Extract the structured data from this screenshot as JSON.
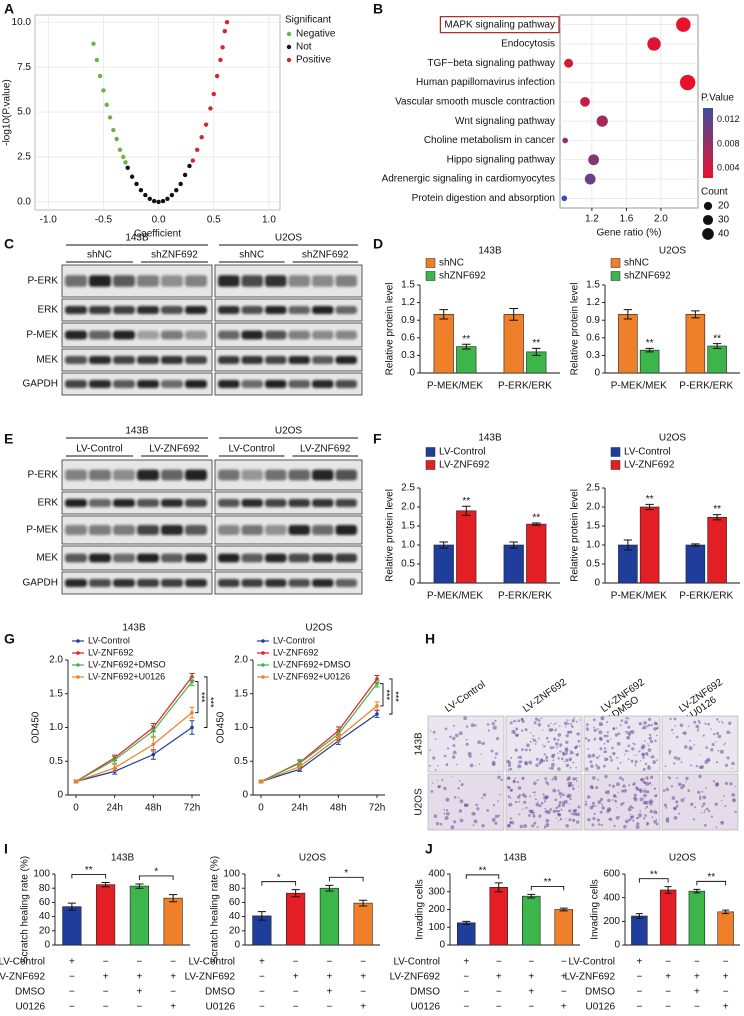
{
  "panel_letters": [
    "A",
    "B",
    "C",
    "D",
    "E",
    "F",
    "G",
    "H",
    "I",
    "J"
  ],
  "chart_data": [
    {
      "type": "scatter",
      "xlabel": "Coefficient",
      "ylabel": "-log10(P.value)",
      "legend_title": "Significant",
      "legend": "right",
      "grid": true,
      "xlim": [
        -1.12,
        1.1
      ],
      "xticks": [
        {
          "value": -1,
          "label": "-1.0"
        },
        -0.5,
        {
          "value": 0,
          "label": "0.0"
        },
        0.5,
        {
          "value": 1,
          "label": "1.0"
        }
      ],
      "ylim": [
        -0.45,
        10.4
      ],
      "yticks": [
        {
          "value": 0,
          "label": "0.0"
        },
        2.5,
        {
          "value": 5,
          "label": "5.0"
        },
        7.5,
        {
          "value": 10,
          "label": "10.0"
        }
      ],
      "series": [
        {
          "name": "Negative",
          "color": "#6ab344",
          "x": [
            -0.59,
            -0.56,
            -0.53,
            -0.5,
            -0.47,
            -0.44,
            -0.41,
            -0.38,
            -0.35,
            -0.32,
            -0.3
          ],
          "values": [
            8.8,
            7.9,
            7.0,
            6.2,
            5.4,
            4.7,
            4.0,
            3.5,
            2.9,
            2.5,
            2.2
          ]
        },
        {
          "name": "Not",
          "color": "#111111",
          "x": [
            -0.28,
            -0.24,
            -0.2,
            -0.16,
            -0.12,
            -0.08,
            -0.04,
            0,
            0.04,
            0.08,
            0.12,
            0.16,
            0.2,
            0.24,
            0.28
          ],
          "values": [
            1.9,
            1.4,
            1.0,
            0.65,
            0.38,
            0.17,
            0.05,
            0,
            0.05,
            0.17,
            0.38,
            0.65,
            1.0,
            1.5,
            2.0
          ]
        },
        {
          "name": "Positive",
          "color": "#d7262b",
          "x": [
            0.31,
            0.35,
            0.39,
            0.43,
            0.47,
            0.5,
            0.53,
            0.56,
            0.58,
            0.6,
            0.62
          ],
          "values": [
            2.3,
            2.9,
            3.6,
            4.3,
            5.2,
            6.0,
            7.0,
            7.9,
            8.6,
            9.5,
            10.0
          ]
        }
      ]
    },
    {
      "type": "bubble",
      "xlabel": "Gene ratio (%)",
      "grid": true,
      "highlight": 0,
      "categories": [
        "MAPK signaling pathway",
        "Endocytosis",
        "TGF−beta signaling pathway",
        "Human papillomavirus infection",
        "Vascular smooth muscle contraction",
        "Wnt signaling pathway",
        "Choline metabolism in cancer",
        "Hippo signaling pathway",
        "Adrenergic signaling in cardiomyocytes",
        "Protein digestion and absorption"
      ],
      "values": [
        2.26,
        1.92,
        0.93,
        2.31,
        1.12,
        1.32,
        0.89,
        1.22,
        1.18,
        0.88
      ],
      "sizes": [
        40,
        34,
        15,
        45,
        18,
        24,
        6,
        22,
        22,
        6
      ],
      "pvalues": [
        0.0025,
        0.003,
        0.0035,
        0.0024,
        0.0045,
        0.007,
        0.009,
        0.0095,
        0.011,
        0.0139
      ],
      "xlim": [
        0.83,
        2.43
      ],
      "xticks": [
        1.2,
        1.6,
        {
          "value": 2,
          "label": "2.0"
        }
      ],
      "color_title": "P.Value",
      "clim": [
        0.0024,
        0.0139
      ],
      "cticks": [
        0.012,
        0.008,
        0.004
      ],
      "low_color": "#e8112d",
      "high_color": "#3f4ea0",
      "size_title": "Count",
      "size_ticks": [
        20,
        30,
        40
      ]
    },
    {
      "type": "bar",
      "title": "143B",
      "ylabel": "Relative protein level",
      "categories": [
        "P-MEK/MEK",
        "P-ERK/ERK"
      ],
      "ylim": [
        0,
        1.5
      ],
      "yticks": [
        0,
        0.3,
        0.6,
        0.9,
        1.2,
        1.5
      ],
      "legend": "top-left",
      "series": [
        {
          "name": "shNC",
          "color": "#f07f2a",
          "values": [
            1.0,
            1.0
          ],
          "errors": [
            0.08,
            0.1
          ]
        },
        {
          "name": "shZNF692",
          "color": "#3cb54a",
          "values": [
            0.45,
            0.36
          ],
          "errors": [
            0.04,
            0.06
          ],
          "labels": [
            "**",
            "**"
          ]
        }
      ]
    },
    {
      "type": "bar",
      "title": "U2OS",
      "ylabel": "Relative protein level",
      "categories": [
        "P-MEK/MEK",
        "P-ERK/ERK"
      ],
      "ylim": [
        0,
        1.5
      ],
      "yticks": [
        0,
        0.3,
        0.6,
        0.9,
        1.2,
        1.5
      ],
      "legend": "top-left",
      "series": [
        {
          "name": "shNC",
          "color": "#f07f2a",
          "values": [
            1.0,
            1.0
          ],
          "errors": [
            0.08,
            0.06
          ]
        },
        {
          "name": "shZNF692",
          "color": "#3cb54a",
          "values": [
            0.39,
            0.46
          ],
          "errors": [
            0.03,
            0.04
          ],
          "labels": [
            "**",
            "**"
          ]
        }
      ]
    },
    {
      "type": "bar",
      "title": "143B",
      "ylabel": "Relative protein level",
      "categories": [
        "P-MEK/MEK",
        "P-ERK/ERK"
      ],
      "ylim": [
        0,
        2.5
      ],
      "yticks": [
        0,
        0.5,
        {
          "value": 1,
          "label": "1.0"
        },
        1.5,
        {
          "value": 2,
          "label": "2.0"
        },
        2.5
      ],
      "legend": "top-left",
      "series": [
        {
          "name": "LV-Control",
          "color": "#1f3e9c",
          "values": [
            1.0,
            1.0
          ],
          "errors": [
            0.08,
            0.08
          ]
        },
        {
          "name": "LV-ZNF692",
          "color": "#e31e24",
          "values": [
            1.9,
            1.55
          ],
          "errors": [
            0.12,
            0.03
          ],
          "labels": [
            "**",
            "**"
          ]
        }
      ]
    },
    {
      "type": "bar",
      "title": "U2OS",
      "ylabel": "Relative protein level",
      "categories": [
        "P-MEK/MEK",
        "P-ERK/ERK"
      ],
      "ylim": [
        0,
        2.5
      ],
      "yticks": [
        0,
        0.5,
        {
          "value": 1,
          "label": "1.0"
        },
        1.5,
        {
          "value": 2,
          "label": "2.0"
        },
        2.5
      ],
      "legend": "top-left",
      "series": [
        {
          "name": "LV-Control",
          "color": "#1f3e9c",
          "values": [
            1.0,
            1.0
          ],
          "errors": [
            0.13,
            0.03
          ]
        },
        {
          "name": "LV-ZNF692",
          "color": "#e31e24",
          "values": [
            2.0,
            1.73
          ],
          "errors": [
            0.07,
            0.07
          ],
          "labels": [
            "**",
            "**"
          ]
        }
      ]
    },
    {
      "type": "line",
      "title": "143B",
      "ylabel": "OD450",
      "categories": [
        "0",
        "24h",
        "48h",
        "72h"
      ],
      "ylim": [
        0,
        2
      ],
      "yticks": [
        0,
        0.5,
        {
          "value": 1,
          "label": "1.0"
        },
        1.5,
        {
          "value": 2,
          "label": "2.0"
        }
      ],
      "legend": "top-left",
      "series": [
        {
          "name": "LV-Control",
          "color": "#1f3e9c",
          "values": [
            0.2,
            0.35,
            0.6,
            1.0
          ],
          "errors": [
            0.02,
            0.04,
            0.07,
            0.1
          ]
        },
        {
          "name": "LV-ZNF692",
          "color": "#e31e24",
          "values": [
            0.2,
            0.55,
            1.0,
            1.75
          ],
          "errors": [
            0.02,
            0.04,
            0.06,
            0.05
          ]
        },
        {
          "name": "LV-ZNF692+DMSO",
          "color": "#3cb54a",
          "values": [
            0.2,
            0.52,
            0.95,
            1.68
          ],
          "errors": [
            0.02,
            0.05,
            0.08,
            0.06
          ]
        },
        {
          "name": "LV-ZNF692+U0126",
          "color": "#f07f2a",
          "values": [
            0.2,
            0.4,
            0.75,
            1.22
          ],
          "errors": [
            0.02,
            0.05,
            0.1,
            0.08
          ]
        }
      ],
      "comparisons": [
        {
          "series": [
            2,
            3
          ],
          "label": "***"
        },
        {
          "series": [
            0,
            1
          ],
          "label": "***"
        }
      ]
    },
    {
      "type": "line",
      "title": "U2OS",
      "ylabel": "OD450",
      "categories": [
        "0",
        "24h",
        "48h",
        "72h"
      ],
      "ylim": [
        0,
        2
      ],
      "yticks": [
        0,
        0.5,
        {
          "value": 1,
          "label": "1.0"
        },
        1.5,
        {
          "value": 2,
          "label": "2.0"
        }
      ],
      "legend": "top-left",
      "series": [
        {
          "name": "LV-Control",
          "color": "#1f3e9c",
          "values": [
            0.2,
            0.38,
            0.8,
            1.2
          ],
          "errors": [
            0.02,
            0.03,
            0.05,
            0.05
          ]
        },
        {
          "name": "LV-ZNF692",
          "color": "#e31e24",
          "values": [
            0.2,
            0.48,
            0.95,
            1.72
          ],
          "errors": [
            0.02,
            0.04,
            0.06,
            0.05
          ]
        },
        {
          "name": "LV-ZNF692+DMSO",
          "color": "#3cb54a",
          "values": [
            0.2,
            0.47,
            0.9,
            1.65
          ],
          "errors": [
            0.02,
            0.04,
            0.07,
            0.05
          ]
        },
        {
          "name": "LV-ZNF692+U0126",
          "color": "#f07f2a",
          "values": [
            0.2,
            0.42,
            0.85,
            1.32
          ],
          "errors": [
            0.02,
            0.04,
            0.06,
            0.06
          ]
        }
      ],
      "comparisons": [
        {
          "series": [
            2,
            3
          ],
          "label": "***"
        },
        {
          "series": [
            0,
            1
          ],
          "label": "***"
        }
      ]
    },
    {
      "type": "bar",
      "title": "143B",
      "ylabel": "Scratch healing rate (%)",
      "ylim": [
        0,
        100
      ],
      "yticks": [
        0,
        20,
        40,
        60,
        80,
        100
      ],
      "values": [
        54,
        85,
        83,
        66
      ],
      "errors": [
        5,
        3,
        3,
        5
      ],
      "colors": [
        "#1f3e9c",
        "#e31e24",
        "#3cb54a",
        "#f07f2a"
      ],
      "comparisons": [
        {
          "pair": [
            0,
            1
          ],
          "label": "**"
        },
        {
          "pair": [
            2,
            3
          ],
          "label": "*"
        }
      ]
    },
    {
      "type": "bar",
      "title": "U2OS",
      "ylabel": "Scratch healing rate (%)",
      "ylim": [
        0,
        100
      ],
      "yticks": [
        0,
        20,
        40,
        60,
        80,
        100
      ],
      "values": [
        41,
        73,
        80,
        59
      ],
      "errors": [
        6,
        5,
        4,
        4
      ],
      "colors": [
        "#1f3e9c",
        "#e31e24",
        "#3cb54a",
        "#f07f2a"
      ],
      "comparisons": [
        {
          "pair": [
            0,
            1
          ],
          "label": "*"
        },
        {
          "pair": [
            2,
            3
          ],
          "label": "*"
        }
      ]
    },
    {
      "type": "bar",
      "title": "143B",
      "ylabel": "Invading cells",
      "ylim": [
        0,
        400
      ],
      "yticks": [
        0,
        100,
        200,
        300,
        400
      ],
      "values": [
        125,
        325,
        275,
        200
      ],
      "errors": [
        8,
        25,
        10,
        8
      ],
      "colors": [
        "#1f3e9c",
        "#e31e24",
        "#3cb54a",
        "#f07f2a"
      ],
      "comparisons": [
        {
          "pair": [
            0,
            1
          ],
          "label": "**"
        },
        {
          "pair": [
            2,
            3
          ],
          "label": "**"
        }
      ]
    },
    {
      "type": "bar",
      "title": "U2OS",
      "ylabel": "Invading cells",
      "ylim": [
        0,
        600
      ],
      "yticks": [
        0,
        200,
        400,
        600
      ],
      "values": [
        245,
        465,
        455,
        280
      ],
      "errors": [
        20,
        28,
        15,
        15
      ],
      "colors": [
        "#1f3e9c",
        "#e31e24",
        "#3cb54a",
        "#f07f2a"
      ],
      "comparisons": [
        {
          "pair": [
            0,
            1
          ],
          "label": "**"
        },
        {
          "pair": [
            2,
            3
          ],
          "label": "**"
        }
      ]
    }
  ],
  "blots": [
    {
      "cells": [
        "143B",
        "U2OS"
      ],
      "conditions": [
        "shNC",
        "shZNF692"
      ],
      "proteins": [
        "P-ERK",
        "ERK",
        "P-MEK",
        "MEK",
        "GAPDH"
      ]
    },
    {
      "cells": [
        "143B",
        "U2OS"
      ],
      "conditions": [
        "LV-Control",
        "LV-ZNF692"
      ],
      "proteins": [
        "P-ERK",
        "ERK",
        "P-MEK",
        "MEK",
        "GAPDH"
      ]
    }
  ],
  "images": {
    "columns": [
      [
        "LV-Control"
      ],
      [
        "LV-ZNF692"
      ],
      [
        "LV-ZNF692",
        "+DMSO"
      ],
      [
        "LV-ZNF692",
        "+U0126"
      ]
    ],
    "rows": [
      "143B",
      "U2OS"
    ]
  },
  "treatments": [
    {
      "name": "LV-Control",
      "marks": [
        "+",
        "−",
        "−",
        "−"
      ]
    },
    {
      "name": "LV-ZNF692",
      "marks": [
        "−",
        "+",
        "+",
        "+"
      ]
    },
    {
      "name": "DMSO",
      "marks": [
        "−",
        "−",
        "+",
        "−"
      ]
    },
    {
      "name": "U0126",
      "marks": [
        "−",
        "−",
        "−",
        "+"
      ]
    }
  ]
}
